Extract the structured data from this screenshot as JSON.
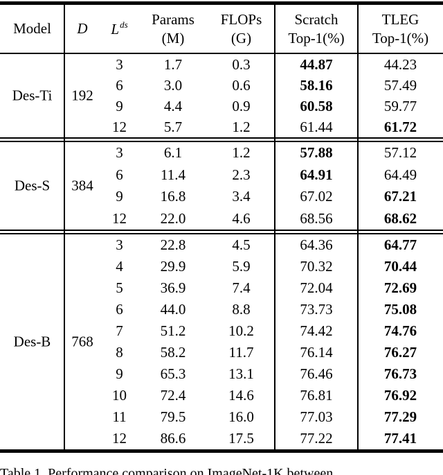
{
  "colors": {
    "background": "#ffffff",
    "text": "#000000",
    "rule": "#000000"
  },
  "header": {
    "model": "Model",
    "d": "D",
    "l_base": "L",
    "l_sup": "ds",
    "params": [
      "Params",
      "(M)"
    ],
    "flops": [
      "FLOPs",
      "(G)"
    ],
    "scratch": [
      "Scratch",
      "Top-1(%)"
    ],
    "tleg": [
      "TLEG",
      "Top-1(%)"
    ]
  },
  "sections": [
    {
      "model": "Des-Ti",
      "d": "192",
      "rows": [
        {
          "l": "3",
          "params": "1.7",
          "flops": "0.3",
          "scratch": "44.87",
          "scratch_bold": true,
          "tleg": "44.23",
          "tleg_bold": false
        },
        {
          "l": "6",
          "params": "3.0",
          "flops": "0.6",
          "scratch": "58.16",
          "scratch_bold": true,
          "tleg": "57.49",
          "tleg_bold": false
        },
        {
          "l": "9",
          "params": "4.4",
          "flops": "0.9",
          "scratch": "60.58",
          "scratch_bold": true,
          "tleg": "59.77",
          "tleg_bold": false
        },
        {
          "l": "12",
          "params": "5.7",
          "flops": "1.2",
          "scratch": "61.44",
          "scratch_bold": false,
          "tleg": "61.72",
          "tleg_bold": true
        }
      ]
    },
    {
      "model": "Des-S",
      "d": "384",
      "rows": [
        {
          "l": "3",
          "params": "6.1",
          "flops": "1.2",
          "scratch": "57.88",
          "scratch_bold": true,
          "tleg": "57.12",
          "tleg_bold": false
        },
        {
          "l": "6",
          "params": "11.4",
          "flops": "2.3",
          "scratch": "64.91",
          "scratch_bold": true,
          "tleg": "64.49",
          "tleg_bold": false
        },
        {
          "l": "9",
          "params": "16.8",
          "flops": "3.4",
          "scratch": "67.02",
          "scratch_bold": false,
          "tleg": "67.21",
          "tleg_bold": true
        },
        {
          "l": "12",
          "params": "22.0",
          "flops": "4.6",
          "scratch": "68.56",
          "scratch_bold": false,
          "tleg": "68.62",
          "tleg_bold": true
        }
      ]
    },
    {
      "model": "Des-B",
      "d": "768",
      "rows": [
        {
          "l": "3",
          "params": "22.8",
          "flops": "4.5",
          "scratch": "64.36",
          "scratch_bold": false,
          "tleg": "64.77",
          "tleg_bold": true
        },
        {
          "l": "4",
          "params": "29.9",
          "flops": "5.9",
          "scratch": "70.32",
          "scratch_bold": false,
          "tleg": "70.44",
          "tleg_bold": true
        },
        {
          "l": "5",
          "params": "36.9",
          "flops": "7.4",
          "scratch": "72.04",
          "scratch_bold": false,
          "tleg": "72.69",
          "tleg_bold": true
        },
        {
          "l": "6",
          "params": "44.0",
          "flops": "8.8",
          "scratch": "73.73",
          "scratch_bold": false,
          "tleg": "75.08",
          "tleg_bold": true
        },
        {
          "l": "7",
          "params": "51.2",
          "flops": "10.2",
          "scratch": "74.42",
          "scratch_bold": false,
          "tleg": "74.76",
          "tleg_bold": true
        },
        {
          "l": "8",
          "params": "58.2",
          "flops": "11.7",
          "scratch": "76.14",
          "scratch_bold": false,
          "tleg": "76.27",
          "tleg_bold": true
        },
        {
          "l": "9",
          "params": "65.3",
          "flops": "13.1",
          "scratch": "76.46",
          "scratch_bold": false,
          "tleg": "76.73",
          "tleg_bold": true
        },
        {
          "l": "10",
          "params": "72.4",
          "flops": "14.6",
          "scratch": "76.81",
          "scratch_bold": false,
          "tleg": "76.92",
          "tleg_bold": true
        },
        {
          "l": "11",
          "params": "79.5",
          "flops": "16.0",
          "scratch": "77.03",
          "scratch_bold": false,
          "tleg": "77.29",
          "tleg_bold": true
        },
        {
          "l": "12",
          "params": "86.6",
          "flops": "17.5",
          "scratch": "77.22",
          "scratch_bold": false,
          "tleg": "77.41",
          "tleg_bold": true
        }
      ]
    }
  ],
  "caption": "Table 1. Performance comparison on ImageNet-1K between"
}
